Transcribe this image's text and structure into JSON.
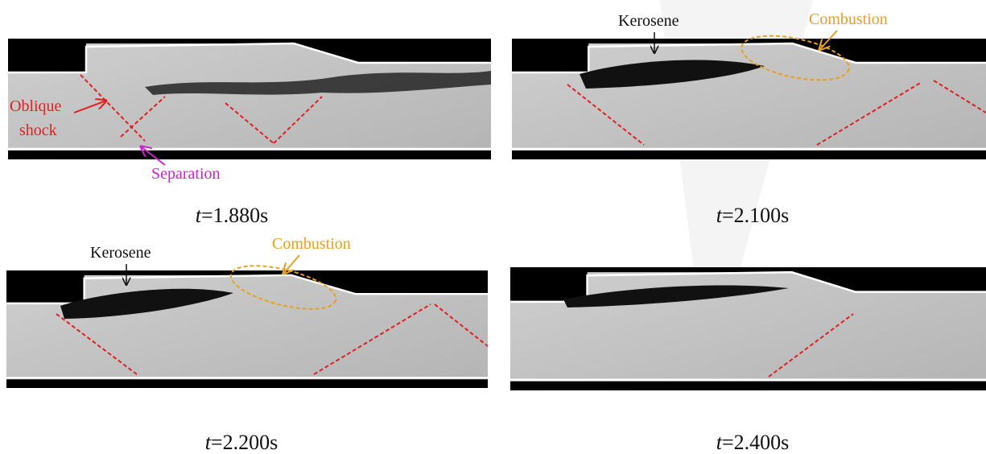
{
  "panels": [
    {
      "caption": {
        "var": "t",
        "rest": "=1.880s"
      },
      "labels": [
        "Oblique",
        "shock",
        "Separation"
      ]
    },
    {
      "caption": {
        "var": "t",
        "rest": "=2.100s"
      },
      "labels": [
        "Kerosene",
        "Combustion"
      ]
    },
    {
      "caption": {
        "var": "t",
        "rest": "=2.200s"
      },
      "labels": [
        "Kerosene",
        "Combustion"
      ]
    },
    {
      "caption": {
        "var": "t",
        "rest": "=2.400s"
      },
      "labels": []
    }
  ]
}
